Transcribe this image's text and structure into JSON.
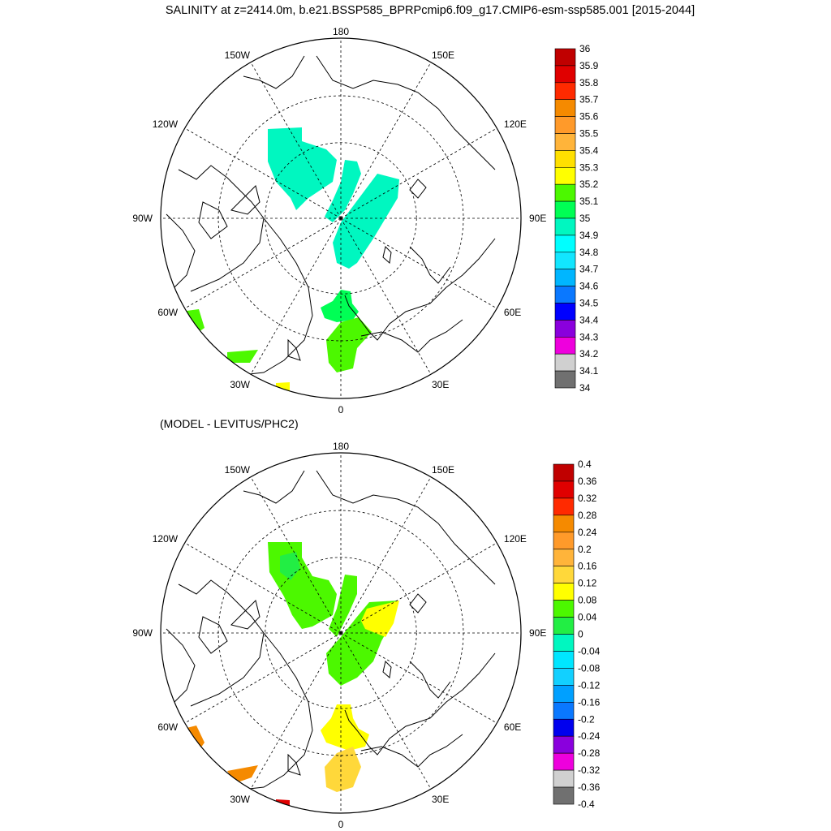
{
  "title": "SALINITY at z=2414.0m, b.e21.BSSP585_BPRPcmip6.f09_g17.CMIP6-esm-ssp585.001 [2015-2044]",
  "panels": [
    {
      "id": "salinity",
      "subtitle": "",
      "lon_labels": {
        "top": "180",
        "bottom": "0",
        "left": "90W",
        "right": "90E",
        "upper_left_1": "150W",
        "upper_left_2": "120W",
        "upper_right_1": "150E",
        "upper_right_2": "120E",
        "lower_left_1": "60W",
        "lower_left_2": "30W",
        "lower_right_1": "60E",
        "lower_right_2": "30E"
      },
      "colorbar": {
        "labels": [
          "36",
          "35.9",
          "35.8",
          "35.7",
          "35.6",
          "35.5",
          "35.4",
          "35.3",
          "35.2",
          "35.1",
          "35",
          "34.9",
          "34.8",
          "34.7",
          "34.6",
          "34.5",
          "34.4",
          "34.3",
          "34.2",
          "34.1",
          "34"
        ],
        "colors": [
          "#c00000",
          "#e00000",
          "#ff2a00",
          "#f58a00",
          "#ff9a2a",
          "#ffb43a",
          "#ffe000",
          "#ffff00",
          "#4cf800",
          "#00ff55",
          "#00f7c0",
          "#00ffff",
          "#12e6ff",
          "#00b6ff",
          "#0a78ff",
          "#0000ff",
          "#8a00dd",
          "#ee00dd",
          "#d0d0d0",
          "#707070"
        ]
      },
      "regions": [
        {
          "name": "canada-basin",
          "color": "#00f7c0"
        },
        {
          "name": "lomonosov-ridge",
          "color": "#00f7c0"
        },
        {
          "name": "eurasian-basin",
          "color": "#00f7c0"
        },
        {
          "name": "fram-strait",
          "color": "#00ff55"
        },
        {
          "name": "greenland-sea",
          "color": "#4cf800"
        },
        {
          "name": "labrador-sea",
          "color": "#4cf800"
        },
        {
          "name": "irminger-sea",
          "color": "#4cf800"
        },
        {
          "name": "north-atlantic-patch",
          "color": "#ffff00"
        }
      ]
    },
    {
      "id": "difference",
      "subtitle": "(MODEL - LEVITUS/PHC2)",
      "lon_labels": {
        "top": "180",
        "bottom": "0",
        "left": "90W",
        "right": "90E",
        "upper_left_1": "150W",
        "upper_left_2": "120W",
        "upper_right_1": "150E",
        "upper_right_2": "120E",
        "lower_left_1": "60W",
        "lower_left_2": "30W",
        "lower_right_1": "60E",
        "lower_right_2": "30E"
      },
      "colorbar": {
        "labels": [
          "0.4",
          "0.36",
          "0.32",
          "0.28",
          "0.24",
          "0.2",
          "0.16",
          "0.12",
          "0.08",
          "0.04",
          "0",
          "-0.04",
          "-0.08",
          "-0.12",
          "-0.16",
          "-0.2",
          "-0.24",
          "-0.28",
          "-0.32",
          "-0.36",
          "-0.4"
        ],
        "colors": [
          "#c00000",
          "#e00000",
          "#ff2a00",
          "#f58a00",
          "#ff9a2a",
          "#ffb43a",
          "#ffd83a",
          "#ffff00",
          "#4cf800",
          "#22ee44",
          "#00f7c0",
          "#00e6ff",
          "#12d0ff",
          "#00a0ff",
          "#0a78ff",
          "#0000ee",
          "#8a00dd",
          "#ee00dd",
          "#d0d0d0",
          "#707070"
        ]
      },
      "regions": [
        {
          "name": "canada-basin",
          "color": "#4cf800"
        },
        {
          "name": "canada-basin-core",
          "color": "#22ee44"
        },
        {
          "name": "lomonosov-ridge",
          "color": "#4cf800"
        },
        {
          "name": "eurasian-basin",
          "color": "#4cf800"
        },
        {
          "name": "eurasian-yellow",
          "color": "#ffff00"
        },
        {
          "name": "fram-strait",
          "color": "#ffff00"
        },
        {
          "name": "greenland-sea",
          "color": "#ffd83a"
        },
        {
          "name": "labrador-sea",
          "color": "#f58a00"
        },
        {
          "name": "irminger-sea",
          "color": "#f58a00"
        },
        {
          "name": "north-atlantic-patch",
          "color": "#e00000"
        }
      ]
    }
  ]
}
